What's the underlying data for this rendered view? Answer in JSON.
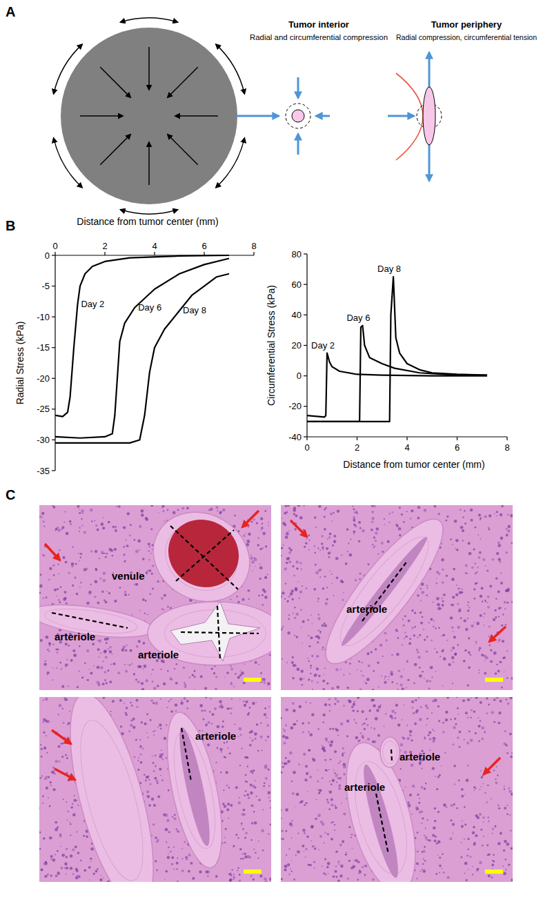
{
  "panel_labels": [
    "A",
    "B",
    "C"
  ],
  "diagram": {
    "interior": {
      "title": "Tumor interior",
      "description": "Radial and circumferential compression"
    },
    "periphery": {
      "title": "Tumor periphery",
      "description": "Radial compression, circumferential tension"
    }
  },
  "chart_data": [
    {
      "type": "line",
      "x_label": "Distance from tumor center (mm)",
      "y_label": "Radial Stress (kPa)",
      "color": "#000000",
      "grid": false,
      "xlim": [
        0,
        8
      ],
      "xticks": [
        0,
        2,
        4,
        6,
        8
      ],
      "ylim": [
        -35,
        0
      ],
      "yticks": [
        0,
        -5,
        -10,
        -15,
        -20,
        -25,
        -30,
        -35
      ],
      "series": [
        {
          "name": "Day 2",
          "x": [
            0,
            0.3,
            0.5,
            0.6,
            0.75,
            0.9,
            1.0,
            1.2,
            1.5,
            2,
            3,
            5,
            7
          ],
          "values": [
            -26,
            -26.2,
            -25.5,
            -23,
            -15,
            -8,
            -5,
            -3,
            -1.8,
            -1,
            -0.4,
            -0.1,
            0
          ]
        },
        {
          "name": "Day 6",
          "x": [
            0,
            1,
            2,
            2.3,
            2.4,
            2.5,
            2.6,
            2.8,
            3.2,
            4,
            5,
            6,
            7
          ],
          "values": [
            -29.5,
            -29.7,
            -29.5,
            -29,
            -26,
            -20,
            -14,
            -11,
            -8.5,
            -5.5,
            -3,
            -1.5,
            -0.5
          ]
        },
        {
          "name": "Day 8",
          "x": [
            0,
            1,
            2,
            3,
            3.4,
            3.6,
            3.8,
            4.0,
            4.4,
            5,
            5.5,
            6,
            6.5,
            7
          ],
          "values": [
            -30.5,
            -30.5,
            -30.5,
            -30.5,
            -30,
            -26,
            -19,
            -15,
            -12,
            -9,
            -6.5,
            -5,
            -3.5,
            -3
          ]
        }
      ]
    },
    {
      "type": "line",
      "x_label": "Distance from tumor center (mm)",
      "y_label": "Circumferential Stress (kPa)",
      "color": "#000000",
      "grid": false,
      "xlim": [
        0,
        8
      ],
      "xticks": [
        0,
        2,
        4,
        6,
        8
      ],
      "ylim": [
        -40,
        80
      ],
      "yticks": [
        -40,
        -20,
        0,
        20,
        40,
        60,
        80
      ],
      "series": [
        {
          "name": "Day 2",
          "x": [
            0,
            0.7,
            0.75,
            0.8,
            0.9,
            1.0,
            1.3,
            2,
            3,
            5,
            7.2
          ],
          "values": [
            -26,
            -27,
            -26,
            15,
            9,
            6,
            3,
            1,
            0.5,
            0,
            0
          ]
        },
        {
          "name": "Day 6",
          "x": [
            0,
            1,
            2.1,
            2.15,
            2.22,
            2.3,
            2.5,
            3,
            3.5,
            4.5,
            6,
            7.2
          ],
          "values": [
            -30,
            -30,
            -30,
            32,
            33,
            20,
            12,
            8,
            5,
            2,
            0.5,
            0.5
          ]
        },
        {
          "name": "Day 8",
          "x": [
            0,
            1,
            2,
            3.3,
            3.35,
            3.45,
            3.55,
            3.7,
            4,
            4.5,
            5,
            6,
            7.2
          ],
          "values": [
            -30,
            -30,
            -30,
            -30,
            40,
            65,
            25,
            15,
            8,
            4,
            2,
            1,
            0.5
          ]
        }
      ]
    }
  ],
  "histology": {
    "images": [
      {
        "labels": [
          "venule",
          "arteriole",
          "arteriole"
        ]
      },
      {
        "labels": [
          "arteriole"
        ]
      },
      {
        "labels": [
          "arteriole"
        ]
      },
      {
        "labels": [
          "arteriole",
          "arteriole"
        ]
      }
    ]
  }
}
